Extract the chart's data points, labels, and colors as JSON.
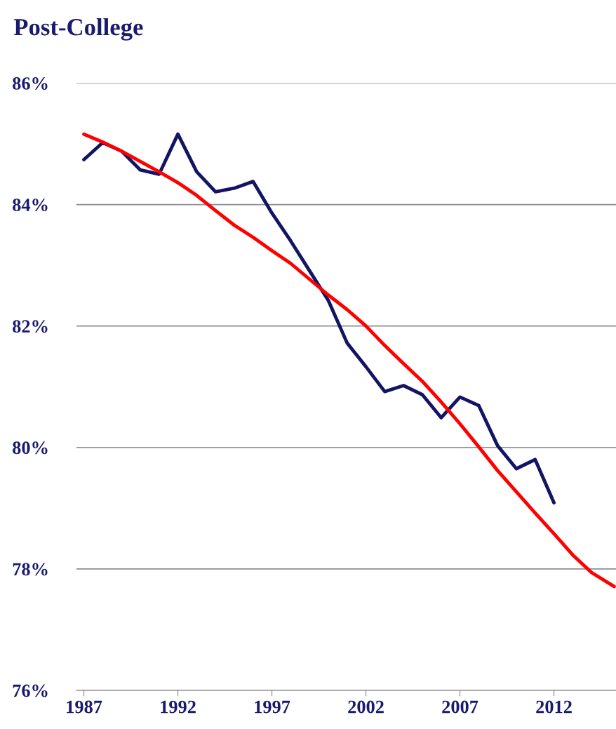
{
  "chart_data": {
    "type": "line",
    "title": "Post-College",
    "xlim": [
      1986.6,
      2015.3
    ],
    "xticks": [
      1987,
      1992,
      1997,
      2002,
      2007,
      2012
    ],
    "ylim": [
      76,
      86
    ],
    "yticks": [
      {
        "value": 76,
        "label": "76%"
      },
      {
        "value": 78,
        "label": "78%"
      },
      {
        "value": 80,
        "label": "80%"
      },
      {
        "value": 82,
        "label": "82%"
      },
      {
        "value": 84,
        "label": "84%"
      },
      {
        "value": 86,
        "label": "86%"
      }
    ],
    "grid": "y",
    "marker": "none",
    "line_style": "solid",
    "series": [
      {
        "color": "#141464",
        "x": [
          1987,
          1988,
          1989,
          1990,
          1991,
          1992,
          1993,
          1994,
          1995,
          1996,
          1997,
          1998,
          1999,
          2000,
          2001,
          2002,
          2003,
          2004,
          2005,
          2006,
          2007,
          2008,
          2009,
          2010,
          2011,
          2012
        ],
        "values": [
          84.74,
          85.02,
          84.88,
          84.57,
          84.5,
          85.16,
          84.54,
          84.21,
          84.27,
          84.38,
          83.86,
          83.4,
          82.91,
          82.42,
          81.72,
          81.33,
          80.92,
          81.02,
          80.87,
          80.49,
          80.83,
          80.69,
          80.03,
          79.65,
          79.8,
          79.09
        ]
      },
      {
        "color": "#ff0000",
        "x": [
          1987,
          1988,
          1989,
          1990,
          1991,
          1992,
          1993,
          1994,
          1995,
          1996,
          1997,
          1998,
          1999,
          2000,
          2001,
          2002,
          2003,
          2004,
          2005,
          2006,
          2007,
          2008,
          2009,
          2010,
          2011,
          2012,
          2013,
          2014,
          2015.2
        ],
        "values": [
          85.16,
          85.03,
          84.88,
          84.71,
          84.54,
          84.36,
          84.15,
          83.9,
          83.66,
          83.46,
          83.24,
          83.03,
          82.77,
          82.51,
          82.27,
          82.0,
          81.68,
          81.38,
          81.09,
          80.75,
          80.39,
          80.01,
          79.62,
          79.27,
          78.92,
          78.58,
          78.23,
          77.94,
          77.71
        ]
      }
    ]
  }
}
